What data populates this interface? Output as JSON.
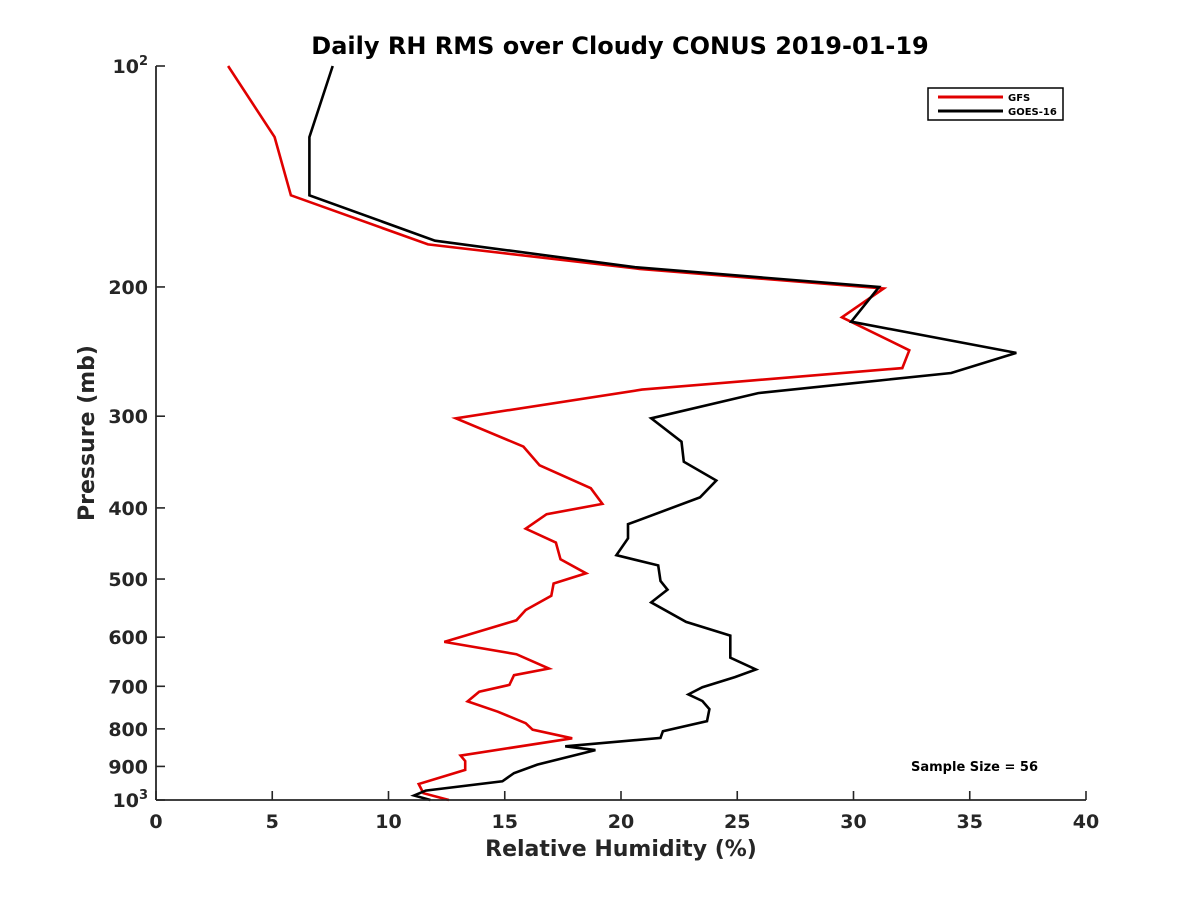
{
  "chart_data": {
    "type": "line",
    "title": "Daily RH RMS over Cloudy CONUS 2019-01-19",
    "xlabel": "Relative Humidity (%)",
    "ylabel": "Pressure (mb)",
    "xlim": [
      0,
      40
    ],
    "ylim": [
      100,
      1000
    ],
    "y_scale": "log",
    "y_reversed": true,
    "grid": false,
    "legend_position": "top-right",
    "x_ticks": [
      {
        "value": 0,
        "label": "0"
      },
      {
        "value": 5,
        "label": "5"
      },
      {
        "value": 10,
        "label": "10"
      },
      {
        "value": 15,
        "label": "15"
      },
      {
        "value": 20,
        "label": "20"
      },
      {
        "value": 25,
        "label": "25"
      },
      {
        "value": 30,
        "label": "30"
      },
      {
        "value": 35,
        "label": "35"
      },
      {
        "value": 40,
        "label": "40"
      }
    ],
    "y_ticks": [
      {
        "value": 100,
        "base": "10",
        "exp": "2"
      },
      {
        "value": 200,
        "label": "200"
      },
      {
        "value": 300,
        "label": "300"
      },
      {
        "value": 400,
        "label": "400"
      },
      {
        "value": 500,
        "label": "500"
      },
      {
        "value": 600,
        "label": "600"
      },
      {
        "value": 700,
        "label": "700"
      },
      {
        "value": 800,
        "label": "800"
      },
      {
        "value": 900,
        "label": "900"
      },
      {
        "value": 1000,
        "base": "10",
        "exp": "3"
      }
    ],
    "annotation": "Sample Size = 56",
    "series": [
      {
        "name": "GFS",
        "color": "#e00000",
        "points": [
          [
            3.1,
            100
          ],
          [
            5.1,
            125
          ],
          [
            5.8,
            150
          ],
          [
            11.7,
            175
          ],
          [
            20.8,
            189
          ],
          [
            31.3,
            201
          ],
          [
            29.5,
            220
          ],
          [
            32.4,
            244
          ],
          [
            32.1,
            258
          ],
          [
            20.9,
            276
          ],
          [
            12.9,
            302
          ],
          [
            15.8,
            330
          ],
          [
            16.5,
            350
          ],
          [
            18.7,
            376
          ],
          [
            19.2,
            395
          ],
          [
            16.8,
            408
          ],
          [
            15.9,
            427
          ],
          [
            17.2,
            446
          ],
          [
            17.4,
            470
          ],
          [
            18.5,
            491
          ],
          [
            17.1,
            507
          ],
          [
            17.0,
            527
          ],
          [
            15.9,
            551
          ],
          [
            15.5,
            569
          ],
          [
            12.4,
            609
          ],
          [
            15.5,
            633
          ],
          [
            16.9,
            662
          ],
          [
            15.4,
            676
          ],
          [
            15.2,
            697
          ],
          [
            13.9,
            712
          ],
          [
            13.4,
            734
          ],
          [
            14.7,
            758
          ],
          [
            15.9,
            786
          ],
          [
            16.2,
            802
          ],
          [
            17.9,
            824
          ],
          [
            13.1,
            870
          ],
          [
            13.3,
            885
          ],
          [
            13.3,
            910
          ],
          [
            11.3,
            951
          ],
          [
            11.5,
            979
          ],
          [
            12.6,
            1000
          ]
        ]
      },
      {
        "name": "GOES-16",
        "color": "#000000",
        "points": [
          [
            7.6,
            100
          ],
          [
            6.6,
            125
          ],
          [
            6.6,
            150
          ],
          [
            12.0,
            173
          ],
          [
            20.6,
            188
          ],
          [
            31.1,
            200
          ],
          [
            29.9,
            223
          ],
          [
            37.0,
            246
          ],
          [
            34.2,
            262
          ],
          [
            25.9,
            279
          ],
          [
            21.3,
            302
          ],
          [
            22.6,
            325
          ],
          [
            22.7,
            346
          ],
          [
            24.1,
            367
          ],
          [
            23.4,
            387
          ],
          [
            20.3,
            421
          ],
          [
            20.3,
            440
          ],
          [
            19.8,
            464
          ],
          [
            21.6,
            479
          ],
          [
            21.7,
            503
          ],
          [
            22.0,
            517
          ],
          [
            21.3,
            538
          ],
          [
            22.8,
            572
          ],
          [
            24.7,
            597
          ],
          [
            24.7,
            616
          ],
          [
            24.7,
            640
          ],
          [
            25.8,
            664
          ],
          [
            24.9,
            680
          ],
          [
            23.5,
            702
          ],
          [
            22.9,
            718
          ],
          [
            23.5,
            733
          ],
          [
            23.8,
            752
          ],
          [
            23.7,
            781
          ],
          [
            21.8,
            806
          ],
          [
            21.7,
            823
          ],
          [
            17.6,
            845
          ],
          [
            18.9,
            855
          ],
          [
            16.4,
            895
          ],
          [
            15.4,
            919
          ],
          [
            14.9,
            943
          ],
          [
            11.6,
            971
          ],
          [
            11.1,
            986
          ],
          [
            11.8,
            1000
          ]
        ]
      }
    ]
  }
}
